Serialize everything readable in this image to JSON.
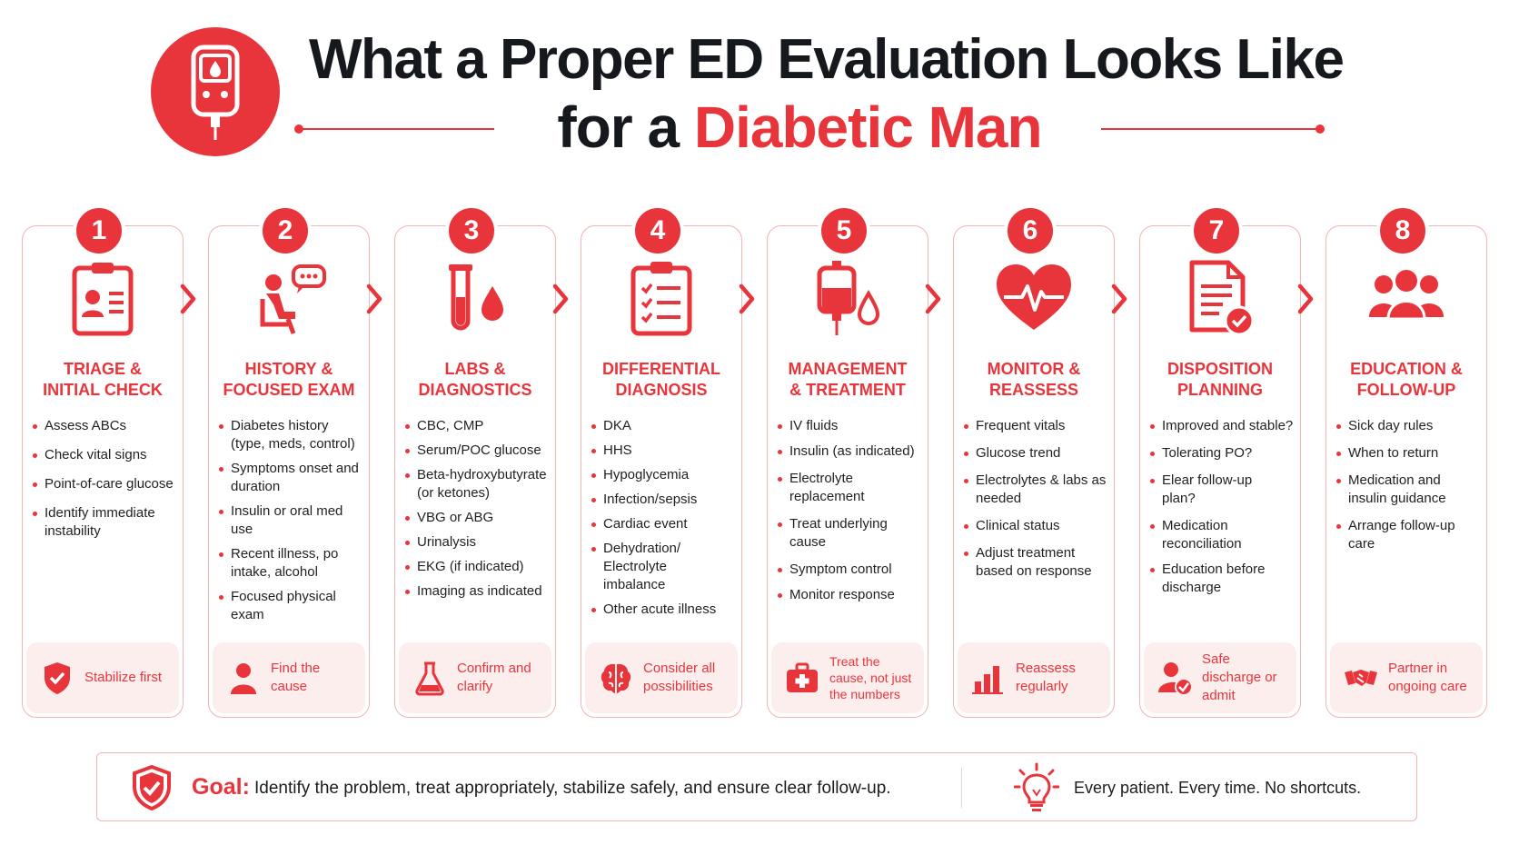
{
  "header": {
    "title_line1": "What a Proper ED Evaluation Looks Like",
    "title_line2_prefix": "for a",
    "title_line2_accent": "Diabetic Man",
    "logo_icon": "glucometer-icon"
  },
  "colors": {
    "accent": "#e8353b",
    "accent_light": "#fdeeee",
    "border": "#f3b2b4",
    "text": "#1c1c1c"
  },
  "steps": [
    {
      "number": "1",
      "icon": "id-card-clipboard-icon",
      "title": "TRIAGE &\nINITIAL CHECK",
      "items": [
        "Assess ABCs",
        "Check vital signs",
        "Point-of-care glucose",
        "Identify immediate instability"
      ],
      "footer_icon": "shield-check-icon",
      "footer": "Stabilize first"
    },
    {
      "number": "2",
      "icon": "patient-chat-icon",
      "title": "HISTORY &\nFOCUSED EXAM",
      "items": [
        "Diabetes history (type, meds, control)",
        "Symptoms onset and duration",
        "Insulin or oral med use",
        "Recent illness, po intake, alcohol",
        "Focused physical exam"
      ],
      "footer_icon": "person-icon",
      "footer": "Find the cause"
    },
    {
      "number": "3",
      "icon": "test-tube-drop-icon",
      "title": "LABS &\nDIAGNOSTICS",
      "items": [
        "CBC, CMP",
        "Serum/POC glucose",
        "Beta-hydroxybutyrate (or ketones)",
        "VBG or ABG",
        "Urinalysis",
        "EKG (if indicated)",
        "Imaging as indicated"
      ],
      "footer_icon": "flask-icon",
      "footer": "Confirm and clarify"
    },
    {
      "number": "4",
      "icon": "checklist-clipboard-icon",
      "title": "DIFFERENTIAL\nDIAGNOSIS",
      "items": [
        "DKA",
        "HHS",
        "Hypoglycemia",
        "Infection/sepsis",
        "Cardiac event",
        "Dehydration/ Electrolyte imbalance",
        "Other acute illness"
      ],
      "footer_icon": "brain-icon",
      "footer": "Consider all possibilities"
    },
    {
      "number": "5",
      "icon": "iv-bag-icon",
      "title": "MANAGEMENT\n& TREATMENT",
      "items": [
        "IV fluids",
        "Insulin (as indicated)",
        "Electrolyte replacement",
        "Treat underlying cause",
        "Symptom control",
        "Monitor response"
      ],
      "footer_icon": "first-aid-kit-icon",
      "footer": "Treat the cause, not just the numbers"
    },
    {
      "number": "6",
      "icon": "heart-pulse-icon",
      "title": "MONITOR &\nREASSESS",
      "items": [
        "Frequent vitals",
        "Glucose trend",
        "Electrolytes & labs as needed",
        "Clinical status",
        "Adjust treatment based on response"
      ],
      "footer_icon": "bar-chart-icon",
      "footer": "Reassess regularly"
    },
    {
      "number": "7",
      "icon": "document-check-icon",
      "title": "DISPOSITION\nPLANNING",
      "items": [
        "Improved and stable?",
        "Tolerating PO?",
        "Elear follow-up plan?",
        "Medication reconciliation",
        "Education before discharge"
      ],
      "footer_icon": "person-check-icon",
      "footer": "Safe discharge or admit"
    },
    {
      "number": "8",
      "icon": "group-icon",
      "title": "EDUCATION &\nFOLLOW-UP",
      "items": [
        "Sick day rules",
        "When to return",
        "Medication and insulin guidance",
        "Arrange follow-up care"
      ],
      "footer_icon": "handshake-icon",
      "footer": "Partner in ongoing care"
    }
  ],
  "goal": {
    "icon": "shield-check-icon",
    "label": "Goal:",
    "text": "Identify the problem, treat appropriately, stabilize safely, and ensure clear follow-up.",
    "motto_icon": "lightbulb-icon",
    "motto": "Every patient. Every time. No shortcuts."
  }
}
